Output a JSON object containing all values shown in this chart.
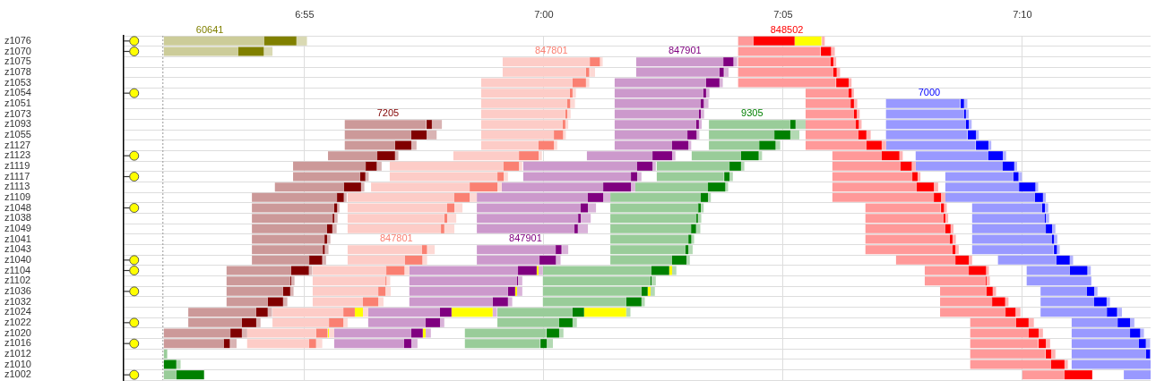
{
  "chart_data": {
    "type": "bar",
    "orientation": "horizontal",
    "grid": true,
    "categories": [
      "z1076",
      "z1070",
      "z1075",
      "z1078",
      "z1053",
      "z1054",
      "z1051",
      "z1073",
      "z1093",
      "z1055",
      "z1127",
      "z1123",
      "z1119",
      "z1117",
      "z1113",
      "z1109",
      "z1048",
      "z1038",
      "z1049",
      "z1041",
      "z1043",
      "z1040",
      "z1104",
      "z1102",
      "z1036",
      "z1032",
      "z1024",
      "z1022",
      "z1020",
      "z1016",
      "z1012",
      "z1010",
      "z1002"
    ],
    "xlim": [
      411.22,
      432.68
    ],
    "xticks": [
      {
        "value": 415,
        "label": "6:55"
      },
      {
        "value": 420,
        "label": "7:00"
      },
      {
        "value": 425,
        "label": "7:05"
      },
      {
        "value": 430,
        "label": "7:10"
      }
    ],
    "ref_lines": [
      {
        "axis": "x",
        "value": 412.04,
        "color": "#999999",
        "line_style": "dotted"
      }
    ],
    "series": [
      {
        "name": "60641",
        "color": "#cccc99",
        "base": [
          412.06,
          412.06,
          null,
          null,
          null,
          null,
          null,
          null,
          null,
          null,
          null,
          null,
          null,
          null,
          null,
          null,
          null,
          null,
          null,
          null,
          null,
          null,
          null,
          null,
          null,
          null,
          null,
          null,
          null,
          null,
          null,
          null,
          null
        ],
        "values": [
          2.1,
          1.55,
          null,
          null,
          null,
          null,
          null,
          null,
          null,
          null,
          null,
          null,
          null,
          null,
          null,
          null,
          null,
          null,
          null,
          null,
          null,
          null,
          null,
          null,
          null,
          null,
          null,
          null,
          null,
          null,
          null,
          null,
          null
        ]
      },
      {
        "color": "#808000",
        "base": [
          414.16,
          413.61,
          null,
          null,
          null,
          null,
          null,
          null,
          null,
          null,
          null,
          null,
          null,
          null,
          null,
          null,
          null,
          null,
          null,
          null,
          null,
          null,
          null,
          null,
          null,
          null,
          null,
          null,
          null,
          null,
          null,
          null,
          null
        ],
        "values": [
          0.67,
          0.54,
          null,
          null,
          null,
          null,
          null,
          null,
          null,
          null,
          null,
          null,
          null,
          null,
          null,
          null,
          null,
          null,
          null,
          null,
          null,
          null,
          null,
          null,
          null,
          null,
          null,
          null,
          null,
          null,
          null,
          null,
          null
        ]
      },
      {
        "color": "#d9d9b3",
        "base": [
          414.83,
          414.16,
          null,
          null,
          null,
          null,
          null,
          null,
          null,
          null,
          null,
          null,
          null,
          null,
          null,
          null,
          null,
          null,
          null,
          null,
          null,
          null,
          null,
          null,
          null,
          null,
          null,
          null,
          null,
          null,
          null,
          null,
          null
        ],
        "values": [
          0.22,
          0.17,
          null,
          null,
          null,
          null,
          null,
          null,
          null,
          null,
          null,
          null,
          null,
          null,
          null,
          null,
          null,
          null,
          null,
          null,
          null,
          null,
          null,
          null,
          null,
          null,
          null,
          null,
          null,
          null,
          null,
          null,
          null
        ]
      },
      {
        "name": "7205",
        "color": "#cc9999",
        "base": [
          null,
          null,
          null,
          null,
          null,
          null,
          null,
          null,
          415.84,
          415.84,
          415.84,
          415.49,
          414.76,
          414.76,
          414.38,
          413.9,
          413.9,
          413.9,
          413.9,
          413.9,
          413.9,
          413.9,
          413.37,
          413.37,
          413.37,
          413.37,
          412.57,
          412.57,
          412.06,
          412.06,
          null,
          null,
          null
        ],
        "values": [
          null,
          null,
          null,
          null,
          null,
          null,
          null,
          null,
          1.7,
          1.39,
          1.05,
          1.03,
          1.52,
          1.4,
          1.44,
          1.78,
          1.72,
          1.69,
          1.57,
          1.52,
          1.48,
          1.2,
          1.35,
          1.33,
          1.18,
          0.86,
          1.42,
          1.12,
          1.39,
          1.25,
          null,
          null,
          null
        ]
      },
      {
        "color": "#800000",
        "base": [
          null,
          null,
          null,
          null,
          null,
          null,
          null,
          null,
          417.55,
          417.23,
          416.89,
          416.52,
          416.27,
          416.16,
          415.82,
          415.67,
          415.62,
          415.58,
          415.47,
          415.41,
          415.38,
          415.09,
          414.72,
          414.7,
          414.55,
          414.23,
          413.99,
          413.69,
          413.45,
          413.31,
          null,
          null,
          null
        ],
        "values": [
          null,
          null,
          null,
          null,
          null,
          null,
          null,
          null,
          0.11,
          0.32,
          0.34,
          0.37,
          0.24,
          0.11,
          0.36,
          0.15,
          0.06,
          0.04,
          0.11,
          0.06,
          0.04,
          0.28,
          0.37,
          0.02,
          0.15,
          0.32,
          0.24,
          0.3,
          0.24,
          0.13,
          null,
          null,
          null
        ]
      },
      {
        "color": "#d9b3b3",
        "base": [
          null,
          null,
          null,
          null,
          null,
          null,
          null,
          null,
          417.66,
          417.55,
          417.23,
          416.89,
          416.52,
          416.27,
          416.18,
          415.82,
          415.67,
          415.62,
          415.58,
          415.47,
          415.41,
          415.38,
          415.09,
          414.72,
          414.7,
          414.55,
          414.23,
          413.99,
          413.69,
          413.45,
          null,
          null,
          null
        ],
        "values": [
          null,
          null,
          null,
          null,
          null,
          null,
          null,
          null,
          0.21,
          0.21,
          0.11,
          0.07,
          0.09,
          0.07,
          0.07,
          0.06,
          0.06,
          0.07,
          0.09,
          0.07,
          0.09,
          0.07,
          0.07,
          0.07,
          0.07,
          0.09,
          0.09,
          0.09,
          0.11,
          0.13,
          null,
          null,
          null
        ]
      },
      {
        "name": "847801",
        "color": "#fdccc7",
        "base": [
          null,
          null,
          419.14,
          419.14,
          418.69,
          418.69,
          418.69,
          418.69,
          418.69,
          418.69,
          418.69,
          418.11,
          416.78,
          416.78,
          416.39,
          415.9,
          415.9,
          415.9,
          415.9,
          null,
          415.9,
          415.9,
          415.17,
          415.17,
          415.17,
          415.17,
          414.33,
          414.33,
          413.8,
          413.8,
          null,
          null,
          null
        ],
        "values": [
          null,
          null,
          1.82,
          1.74,
          1.91,
          1.85,
          1.8,
          1.76,
          1.7,
          1.52,
          1.2,
          1.37,
          2.38,
          2.25,
          2.06,
          2.23,
          2.08,
          2.02,
          1.95,
          null,
          1.55,
          1.2,
          1.54,
          1.52,
          1.37,
          1.05,
          1.48,
          1.18,
          1.44,
          1.29,
          null,
          null,
          null
        ]
      },
      {
        "color": "#fa8072",
        "base": [
          null,
          null,
          420.96,
          420.88,
          420.6,
          420.54,
          420.49,
          420.45,
          420.39,
          420.21,
          419.89,
          419.48,
          419.16,
          419.03,
          418.45,
          418.13,
          417.98,
          417.92,
          417.85,
          null,
          417.45,
          417.1,
          416.7,
          416.69,
          416.54,
          416.22,
          415.81,
          415.51,
          415.24,
          415.09,
          null,
          null,
          null
        ],
        "values": [
          null,
          null,
          0.21,
          0.07,
          0.28,
          0.06,
          0.06,
          0.04,
          0.06,
          0.19,
          0.32,
          0.41,
          0.32,
          0.13,
          0.58,
          0.32,
          0.15,
          0.06,
          0.07,
          null,
          0.11,
          0.36,
          0.39,
          0.02,
          0.15,
          0.32,
          0.24,
          0.3,
          0.24,
          0.15,
          null,
          null,
          null
        ]
      },
      {
        "color": "#ffff00",
        "base": [
          null,
          null,
          null,
          null,
          null,
          null,
          null,
          null,
          null,
          null,
          null,
          null,
          null,
          null,
          null,
          null,
          null,
          null,
          null,
          null,
          null,
          null,
          null,
          null,
          null,
          null,
          416.05,
          null,
          415.49,
          null,
          null,
          null,
          null
        ],
        "values": [
          null,
          null,
          null,
          null,
          null,
          null,
          null,
          null,
          null,
          null,
          null,
          null,
          null,
          null,
          null,
          null,
          null,
          null,
          null,
          null,
          null,
          null,
          null,
          null,
          null,
          null,
          0.17,
          null,
          0.02,
          null,
          null,
          null,
          null
        ]
      },
      {
        "color": "#fdd9d5",
        "base": [
          null,
          null,
          421.16,
          420.96,
          420.88,
          420.6,
          420.54,
          420.49,
          420.45,
          420.39,
          420.21,
          419.89,
          419.48,
          419.16,
          419.03,
          418.45,
          418.13,
          417.98,
          417.92,
          null,
          417.57,
          417.45,
          417.1,
          416.7,
          416.69,
          416.54,
          416.22,
          415.81,
          415.51,
          415.24,
          null,
          null,
          null
        ],
        "values": [
          null,
          null,
          0.07,
          0.11,
          0.07,
          0.07,
          0.11,
          0.07,
          0.06,
          0.07,
          0.07,
          0.07,
          0.07,
          0.09,
          0.09,
          0.15,
          0.17,
          0.19,
          0.21,
          null,
          0.15,
          0.11,
          0.09,
          0.09,
          0.11,
          0.11,
          0.11,
          0.09,
          0.11,
          0.13,
          null,
          null,
          null
        ]
      },
      {
        "name": "847901",
        "color": "#cc99cc",
        "base": [
          null,
          null,
          421.93,
          421.93,
          421.48,
          421.48,
          421.48,
          421.48,
          421.48,
          421.48,
          421.48,
          420.9,
          419.57,
          419.57,
          419.12,
          418.6,
          418.6,
          418.6,
          418.6,
          null,
          418.6,
          418.6,
          417.19,
          417.19,
          417.19,
          417.19,
          416.33,
          416.33,
          415.62,
          415.62,
          null,
          null,
          null
        ],
        "values": [
          null,
          null,
          1.82,
          1.74,
          1.91,
          1.85,
          1.8,
          1.76,
          1.7,
          1.52,
          1.2,
          1.37,
          2.38,
          2.25,
          2.12,
          2.32,
          2.17,
          2.12,
          2.04,
          null,
          1.65,
          1.31,
          2.27,
          2.25,
          2.06,
          1.74,
          1.5,
          1.2,
          1.61,
          1.46,
          null,
          null,
          null
        ]
      },
      {
        "color": "#800080",
        "base": [
          null,
          null,
          423.75,
          423.67,
          423.39,
          423.33,
          423.28,
          423.24,
          423.18,
          423.0,
          422.68,
          422.27,
          421.95,
          421.82,
          421.24,
          420.92,
          420.77,
          420.71,
          420.64,
          null,
          420.24,
          419.91,
          419.46,
          419.44,
          419.25,
          418.93,
          417.83,
          417.53,
          417.23,
          417.08,
          null,
          null,
          null
        ],
        "values": [
          null,
          null,
          0.21,
          0.09,
          0.28,
          0.06,
          0.06,
          0.04,
          0.06,
          0.19,
          0.34,
          0.41,
          0.32,
          0.13,
          0.58,
          0.32,
          0.15,
          0.06,
          0.07,
          null,
          0.13,
          0.34,
          0.39,
          0.02,
          0.15,
          0.32,
          0.24,
          0.3,
          0.24,
          0.15,
          null,
          null,
          null
        ]
      },
      {
        "color": "#ffff00",
        "base": [
          null,
          null,
          null,
          null,
          null,
          null,
          null,
          null,
          null,
          null,
          null,
          null,
          null,
          null,
          null,
          null,
          null,
          null,
          null,
          null,
          null,
          null,
          419.85,
          null,
          419.4,
          null,
          418.07,
          null,
          417.47,
          null,
          null,
          null,
          null
        ],
        "values": [
          null,
          null,
          null,
          null,
          null,
          null,
          null,
          null,
          null,
          null,
          null,
          null,
          null,
          null,
          null,
          null,
          null,
          null,
          null,
          null,
          null,
          null,
          0.04,
          null,
          0.04,
          null,
          0.86,
          null,
          0.06,
          null,
          null,
          null,
          null
        ]
      },
      {
        "color": "#d9b3d9",
        "base": [
          null,
          null,
          423.95,
          423.77,
          423.67,
          423.39,
          423.33,
          423.28,
          423.24,
          423.18,
          423.02,
          422.68,
          422.27,
          421.95,
          421.82,
          421.24,
          420.92,
          420.77,
          420.71,
          null,
          420.38,
          420.24,
          419.89,
          419.46,
          419.44,
          419.25,
          418.93,
          417.83,
          417.53,
          417.23,
          null,
          null,
          null
        ],
        "values": [
          null,
          null,
          0.09,
          0.09,
          0.07,
          0.07,
          0.11,
          0.07,
          0.06,
          0.07,
          0.06,
          0.07,
          0.07,
          0.09,
          0.09,
          0.15,
          0.17,
          0.21,
          0.21,
          null,
          0.13,
          0.11,
          0.09,
          0.09,
          0.11,
          0.09,
          0.09,
          0.09,
          0.11,
          0.13,
          null,
          null,
          null
        ]
      },
      {
        "name": "9305",
        "color": "#99cc99",
        "base": [
          null,
          null,
          null,
          null,
          null,
          null,
          null,
          null,
          423.45,
          423.45,
          423.45,
          423.09,
          422.36,
          422.36,
          421.91,
          421.39,
          421.39,
          421.39,
          421.39,
          421.39,
          421.39,
          421.39,
          419.98,
          419.98,
          419.98,
          419.98,
          419.03,
          419.03,
          418.35,
          418.35,
          null,
          null,
          null
        ],
        "values": [
          null,
          null,
          null,
          null,
          null,
          null,
          null,
          null,
          1.7,
          1.37,
          1.05,
          1.03,
          1.52,
          1.4,
          1.52,
          1.89,
          1.84,
          1.8,
          1.69,
          1.63,
          1.57,
          1.29,
          2.27,
          2.25,
          2.06,
          1.74,
          1.57,
          1.29,
          1.7,
          1.57,
          null,
          null,
          null
        ]
      },
      {
        "color": "#008000",
        "base": [
          null,
          null,
          null,
          null,
          null,
          null,
          null,
          null,
          425.15,
          424.81,
          424.5,
          424.12,
          423.88,
          423.77,
          423.43,
          423.28,
          423.22,
          423.18,
          423.07,
          423.02,
          422.96,
          422.68,
          422.25,
          422.23,
          422.04,
          421.72,
          420.6,
          420.32,
          420.06,
          419.93,
          null,
          null,
          null
        ],
        "values": [
          null,
          null,
          null,
          null,
          null,
          null,
          null,
          null,
          0.11,
          0.34,
          0.34,
          0.37,
          0.24,
          0.11,
          0.36,
          0.15,
          0.06,
          0.04,
          0.11,
          0.06,
          0.06,
          0.3,
          0.37,
          0.02,
          0.13,
          0.32,
          0.24,
          0.28,
          0.26,
          0.13,
          null,
          null,
          null
        ]
      },
      {
        "color": "#ffff00",
        "base": [
          null,
          null,
          null,
          null,
          null,
          null,
          null,
          null,
          null,
          null,
          null,
          null,
          null,
          null,
          null,
          null,
          null,
          null,
          null,
          null,
          null,
          null,
          422.62,
          null,
          422.17,
          null,
          420.84,
          null,
          null,
          null,
          null,
          null,
          null
        ],
        "values": [
          null,
          null,
          null,
          null,
          null,
          null,
          null,
          null,
          null,
          null,
          null,
          null,
          null,
          null,
          null,
          null,
          null,
          null,
          null,
          null,
          null,
          null,
          0.06,
          null,
          0.06,
          null,
          0.88,
          null,
          null,
          null,
          null,
          null,
          null
        ]
      },
      {
        "color": "#b3d9b3",
        "base": [
          null,
          null,
          null,
          null,
          null,
          null,
          null,
          null,
          425.26,
          425.15,
          424.83,
          424.5,
          424.12,
          423.88,
          423.78,
          423.43,
          423.28,
          423.22,
          423.18,
          423.07,
          423.02,
          422.98,
          422.68,
          422.25,
          422.23,
          422.04,
          421.72,
          420.6,
          420.32,
          420.06,
          null,
          null,
          null
        ],
        "values": [
          null,
          null,
          null,
          null,
          null,
          null,
          null,
          null,
          0.21,
          0.19,
          0.11,
          0.06,
          0.07,
          0.07,
          0.07,
          0.06,
          0.06,
          0.07,
          0.09,
          0.07,
          0.09,
          0.07,
          0.09,
          0.09,
          0.09,
          0.07,
          0.09,
          0.09,
          0.09,
          0.13,
          null,
          null,
          null
        ]
      },
      {
        "name": "848502",
        "color": "#ff9999",
        "base": [
          424.06,
          424.06,
          424.06,
          424.06,
          424.06,
          425.47,
          425.47,
          425.47,
          425.47,
          425.47,
          425.47,
          426.03,
          426.03,
          426.03,
          426.03,
          426.03,
          426.72,
          426.72,
          426.72,
          426.72,
          426.72,
          427.36,
          427.96,
          427.96,
          428.28,
          428.28,
          428.28,
          428.91,
          428.91,
          428.91,
          428.91,
          428.91,
          430.0
        ],
        "values": [
          0.32,
          1.72,
          1.93,
          1.99,
          2.04,
          0.9,
          0.94,
          1.01,
          1.05,
          1.1,
          1.27,
          1.03,
          1.42,
          1.67,
          1.76,
          2.12,
          1.57,
          1.63,
          1.67,
          1.76,
          1.82,
          1.24,
          0.92,
          1.27,
          0.97,
          1.09,
          1.37,
          0.96,
          1.22,
          1.42,
          1.57,
          1.69,
          0.88
        ]
      },
      {
        "color": "#ff0000",
        "base": [
          424.38,
          425.79,
          425.99,
          426.05,
          426.11,
          426.37,
          426.41,
          426.48,
          426.52,
          426.57,
          426.74,
          427.06,
          427.45,
          427.7,
          427.79,
          428.15,
          428.3,
          428.35,
          428.39,
          428.48,
          428.54,
          428.6,
          428.88,
          429.23,
          429.25,
          429.36,
          429.64,
          429.87,
          430.13,
          430.34,
          430.49,
          430.6,
          430.88
        ],
        "values": [
          0.86,
          0.21,
          0.06,
          0.07,
          0.26,
          0.06,
          0.07,
          0.06,
          0.06,
          0.17,
          0.32,
          0.37,
          0.24,
          0.11,
          0.36,
          0.15,
          0.06,
          0.04,
          0.11,
          0.06,
          0.06,
          0.28,
          0.36,
          0.02,
          0.13,
          0.28,
          0.22,
          0.26,
          0.21,
          0.15,
          0.11,
          0.28,
          0.58
        ]
      },
      {
        "color": "#ffff00",
        "base": [
          425.24,
          null,
          null,
          null,
          null,
          null,
          null,
          null,
          null,
          null,
          null,
          null,
          null,
          null,
          null,
          null,
          null,
          null,
          null,
          null,
          null,
          null,
          null,
          null,
          null,
          null,
          null,
          null,
          null,
          null,
          null,
          null,
          null
        ],
        "values": [
          0.56,
          null,
          null,
          null,
          null,
          null,
          null,
          null,
          null,
          null,
          null,
          null,
          null,
          null,
          null,
          null,
          null,
          null,
          null,
          null,
          null,
          null,
          null,
          null,
          null,
          null,
          null,
          null,
          null,
          null,
          null,
          null,
          null
        ]
      },
      {
        "color": "#ffb3b3",
        "base": [
          425.81,
          425.99,
          426.05,
          426.12,
          426.37,
          426.42,
          426.48,
          426.54,
          426.57,
          426.74,
          427.06,
          427.43,
          427.7,
          427.81,
          428.15,
          428.3,
          428.35,
          428.39,
          428.5,
          428.54,
          428.6,
          428.88,
          429.23,
          429.25,
          429.38,
          429.64,
          429.87,
          430.13,
          430.34,
          430.49,
          430.6,
          430.88,
          null
        ],
        "values": [
          0.06,
          0.09,
          0.06,
          0.07,
          0.06,
          0.06,
          0.07,
          0.06,
          0.07,
          0.09,
          0.09,
          0.07,
          0.07,
          0.06,
          0.09,
          0.09,
          0.07,
          0.06,
          0.06,
          0.07,
          0.07,
          0.07,
          0.07,
          0.07,
          0.07,
          0.07,
          0.09,
          0.11,
          0.09,
          0.09,
          0.09,
          0.07,
          null
        ]
      },
      {
        "name": "7000",
        "color": "#9999ff",
        "base": [
          null,
          null,
          null,
          null,
          null,
          null,
          427.15,
          427.15,
          427.15,
          427.15,
          427.15,
          427.77,
          427.77,
          428.39,
          428.39,
          428.39,
          428.95,
          428.95,
          428.95,
          428.95,
          428.95,
          429.49,
          430.09,
          430.09,
          430.38,
          430.38,
          430.38,
          431.03,
          431.03,
          431.03,
          431.03,
          431.03,
          432.12
        ],
        "values": [
          null,
          null,
          null,
          null,
          null,
          null,
          1.55,
          1.63,
          1.67,
          1.7,
          1.87,
          1.52,
          1.82,
          1.42,
          1.54,
          1.87,
          1.46,
          1.52,
          1.54,
          1.67,
          1.7,
          1.22,
          0.9,
          1.35,
          0.97,
          1.12,
          1.39,
          0.96,
          1.22,
          1.4,
          1.55,
          1.65,
          0.56
        ]
      },
      {
        "color": "#0000ff",
        "base": [
          null,
          null,
          null,
          null,
          null,
          null,
          428.71,
          428.78,
          428.82,
          428.86,
          429.03,
          429.29,
          429.59,
          429.81,
          429.93,
          430.26,
          430.41,
          430.47,
          430.49,
          430.62,
          430.66,
          430.71,
          430.99,
          null,
          431.35,
          431.5,
          431.76,
          431.99,
          432.25,
          432.43,
          432.58,
          null,
          null
        ],
        "values": [
          null,
          null,
          null,
          null,
          null,
          null,
          0.07,
          0.04,
          0.06,
          0.17,
          0.26,
          0.3,
          0.24,
          0.11,
          0.34,
          0.17,
          0.06,
          0.02,
          0.13,
          0.04,
          0.06,
          0.28,
          0.37,
          null,
          0.15,
          0.26,
          0.22,
          0.26,
          0.21,
          0.15,
          0.09,
          null,
          null
        ]
      },
      {
        "color": "#b3b3ff",
        "base": [
          null,
          null,
          null,
          null,
          null,
          null,
          428.78,
          428.82,
          428.88,
          429.03,
          429.29,
          429.59,
          429.83,
          429.93,
          430.26,
          430.43,
          430.47,
          430.49,
          430.62,
          430.66,
          430.71,
          430.99,
          431.37,
          null,
          431.5,
          431.76,
          431.99,
          432.25,
          432.45,
          432.58,
          null,
          null,
          null
        ],
        "values": [
          null,
          null,
          null,
          null,
          null,
          null,
          0.07,
          0.06,
          0.06,
          0.06,
          0.06,
          0.07,
          0.06,
          0.06,
          0.07,
          0.06,
          0.07,
          0.07,
          0.07,
          0.07,
          0.07,
          0.07,
          0.06,
          null,
          0.07,
          0.07,
          0.09,
          0.09,
          0.09,
          0.09,
          null,
          null,
          null
        ]
      },
      {
        "color": "#99cc99",
        "base": [
          null,
          null,
          null,
          null,
          null,
          null,
          null,
          null,
          null,
          null,
          null,
          null,
          null,
          null,
          null,
          null,
          null,
          null,
          null,
          null,
          null,
          null,
          null,
          null,
          null,
          null,
          null,
          null,
          null,
          null,
          412.06,
          null,
          412.06
        ],
        "values": [
          null,
          null,
          null,
          null,
          null,
          null,
          null,
          null,
          null,
          null,
          null,
          null,
          null,
          null,
          null,
          null,
          null,
          null,
          null,
          null,
          null,
          null,
          null,
          null,
          null,
          null,
          null,
          null,
          null,
          null,
          0.07,
          null,
          0.26
        ]
      },
      {
        "color": "#008000",
        "base": [
          null,
          null,
          null,
          null,
          null,
          null,
          null,
          null,
          null,
          null,
          null,
          null,
          null,
          null,
          null,
          null,
          null,
          null,
          null,
          null,
          null,
          null,
          null,
          null,
          null,
          null,
          null,
          null,
          null,
          null,
          null,
          412.06,
          412.32
        ],
        "values": [
          null,
          null,
          null,
          null,
          null,
          null,
          null,
          null,
          null,
          null,
          null,
          null,
          null,
          null,
          null,
          null,
          null,
          null,
          null,
          null,
          null,
          null,
          null,
          null,
          null,
          null,
          null,
          null,
          null,
          null,
          null,
          0.26,
          0.58
        ]
      },
      {
        "color": "#b3d9b3",
        "base": [
          null,
          null,
          null,
          null,
          null,
          null,
          null,
          null,
          null,
          null,
          null,
          null,
          null,
          null,
          null,
          null,
          null,
          null,
          null,
          null,
          null,
          null,
          null,
          null,
          null,
          null,
          null,
          null,
          null,
          null,
          null,
          412.32,
          null
        ],
        "values": [
          null,
          null,
          null,
          null,
          null,
          null,
          null,
          null,
          null,
          null,
          null,
          null,
          null,
          null,
          null,
          null,
          null,
          null,
          null,
          null,
          null,
          null,
          null,
          null,
          null,
          null,
          null,
          null,
          null,
          null,
          null,
          0.09,
          null
        ]
      },
      {
        "type": "scatter",
        "marker": "circle",
        "color": "#ffff00",
        "values": [
          411.44,
          411.44,
          null,
          null,
          null,
          411.44,
          null,
          null,
          null,
          null,
          null,
          411.44,
          null,
          411.44,
          null,
          null,
          411.44,
          null,
          null,
          null,
          null,
          411.44,
          411.44,
          null,
          411.44,
          null,
          null,
          411.44,
          null,
          411.44,
          null,
          null,
          411.44
        ]
      }
    ]
  }
}
